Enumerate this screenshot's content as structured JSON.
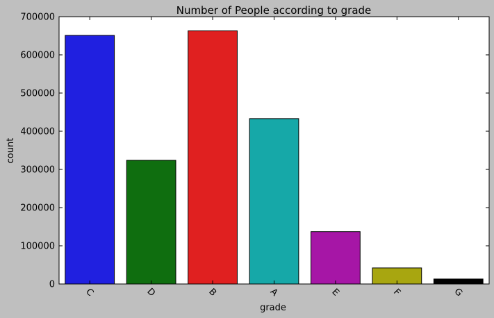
{
  "chart_data": {
    "type": "bar",
    "title": "Number of People according to grade",
    "xlabel": "grade",
    "ylabel": "count",
    "categories": [
      "C",
      "D",
      "B",
      "A",
      "E",
      "F",
      "G"
    ],
    "values": [
      651000,
      324000,
      663000,
      433000,
      137000,
      42000,
      13000
    ],
    "colors": [
      "#2020e0",
      "#0f6e0f",
      "#e02020",
      "#16a8a8",
      "#a616a6",
      "#a8a610",
      "#000000"
    ],
    "ylim": [
      0,
      700000
    ],
    "yticks": [
      0,
      100000,
      200000,
      300000,
      400000,
      500000,
      600000,
      700000
    ],
    "ytick_labels": [
      "0",
      "100000",
      "200000",
      "300000",
      "400000",
      "500000",
      "600000",
      "700000"
    ],
    "grid": false,
    "legend": "none"
  }
}
